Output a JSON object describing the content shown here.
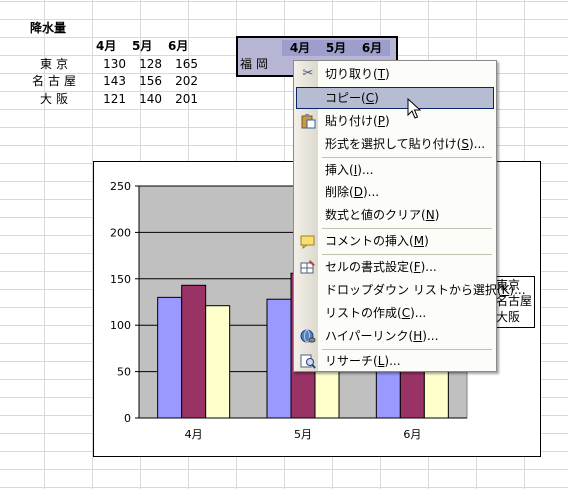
{
  "sheet": {
    "title": "降水量",
    "months": [
      "4月",
      "5月",
      "6月"
    ],
    "rows": [
      {
        "city": "東京",
        "values": [
          "130",
          "128",
          "165"
        ]
      },
      {
        "city": "名古屋",
        "values": [
          "143",
          "156",
          "202"
        ]
      },
      {
        "city": "大阪",
        "values": [
          "121",
          "140",
          "201"
        ]
      }
    ],
    "selection": {
      "months": [
        "4月",
        "5月",
        "6月"
      ],
      "row_label": "福岡"
    }
  },
  "chart_data": {
    "type": "bar",
    "categories": [
      "4月",
      "5月",
      "6月"
    ],
    "series": [
      {
        "name": "東京",
        "values": [
          130,
          128,
          165
        ],
        "color": "#9999ff"
      },
      {
        "name": "名古屋",
        "values": [
          143,
          156,
          202
        ],
        "color": "#993366"
      },
      {
        "name": "大阪",
        "values": [
          121,
          140,
          201
        ],
        "color": "#ffffcc"
      }
    ],
    "ylim": [
      0,
      250
    ],
    "yticks": [
      "0",
      "50",
      "100",
      "150",
      "200",
      "250"
    ],
    "plot_area_color": "#c0c0c0",
    "grid": true,
    "legend": "right"
  },
  "context_menu": {
    "items": [
      {
        "icon": "scissors-icon",
        "label": "切り取り",
        "key": "T"
      },
      {
        "icon": "",
        "label": "コピー",
        "key": "C",
        "hover": true
      },
      {
        "icon": "clipboard-icon",
        "label": "貼り付け",
        "key": "P"
      },
      {
        "icon": "",
        "label": "形式を選択して貼り付け",
        "key": "S",
        "suffix": "..."
      },
      {
        "icon": "",
        "label": "挿入",
        "key": "I",
        "suffix": "..."
      },
      {
        "icon": "",
        "label": "削除",
        "key": "D",
        "suffix": "..."
      },
      {
        "icon": "",
        "label": "数式と値のクリア",
        "key": "N"
      },
      {
        "icon": "comment-icon",
        "label": "コメントの挿入",
        "key": "M"
      },
      {
        "icon": "format-cells-icon",
        "label": "セルの書式設定",
        "key": "F",
        "suffix": "..."
      },
      {
        "icon": "",
        "label": "ドロップダウン リストから選択",
        "key": "K",
        "suffix": "..."
      },
      {
        "icon": "",
        "label": "リストの作成",
        "key": "C",
        "suffix": "..."
      },
      {
        "icon": "hyperlink-icon",
        "label": "ハイパーリンク",
        "key": "H",
        "suffix": "..."
      },
      {
        "icon": "research-icon",
        "label": "リサーチ",
        "key": "L",
        "suffix": "..."
      }
    ]
  }
}
